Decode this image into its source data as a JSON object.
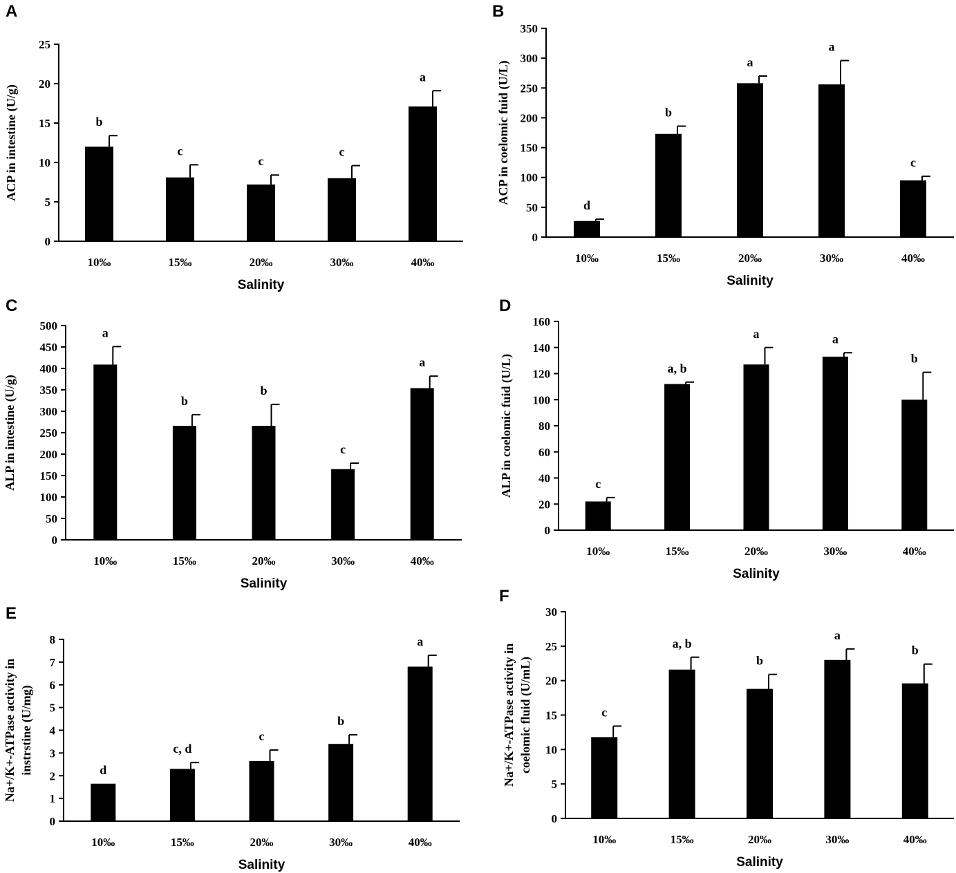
{
  "chart_data": [
    {
      "panel": "A",
      "type": "bar",
      "categories": [
        "10‰",
        "15‰",
        "20‰",
        "30‰",
        "40‰"
      ],
      "values": [
        12,
        8.1,
        7.2,
        8,
        17.1
      ],
      "errors": [
        1.4,
        1.6,
        1.2,
        1.6,
        2
      ],
      "significance": [
        "b",
        "c",
        "c",
        "c",
        "a"
      ],
      "xlabel": "Salinity",
      "ylabel": "ACP in intestine (U/g)",
      "ylabel_lines": [
        "ACP in intestine (U/g)"
      ],
      "ylim": [
        0,
        25
      ],
      "yticks": [
        0,
        5,
        10,
        15,
        20,
        25
      ]
    },
    {
      "panel": "B",
      "type": "bar",
      "categories": [
        "10‰",
        "15‰",
        "20‰",
        "30‰",
        "40‰"
      ],
      "values": [
        27,
        173,
        258,
        256,
        95
      ],
      "errors": [
        3,
        13,
        12,
        40,
        7
      ],
      "significance": [
        "d",
        "b",
        "a",
        "a",
        "c"
      ],
      "xlabel": "Salinity",
      "ylabel": "ACP in coelomic fuid (U/L)",
      "ylabel_lines": [
        "ACP in coelomic fuid (U/L)"
      ],
      "ylim": [
        0,
        350
      ],
      "yticks": [
        0,
        50,
        100,
        150,
        200,
        250,
        300,
        350
      ]
    },
    {
      "panel": "C",
      "type": "bar",
      "categories": [
        "10‰",
        "15‰",
        "20‰",
        "30‰",
        "40‰"
      ],
      "values": [
        409,
        266,
        266,
        165,
        354
      ],
      "errors": [
        42,
        26,
        50,
        14,
        28
      ],
      "significance": [
        "a",
        "b",
        "b",
        "c",
        "a"
      ],
      "xlabel": "Salinity",
      "ylabel": "ALP in intestine (U/g)",
      "ylabel_lines": [
        "ALP in intestine (U/g)"
      ],
      "ylim": [
        0,
        500
      ],
      "yticks": [
        0,
        50,
        100,
        150,
        200,
        250,
        300,
        350,
        400,
        450,
        500
      ]
    },
    {
      "panel": "D",
      "type": "bar",
      "categories": [
        "10‰",
        "15‰",
        "20‰",
        "30‰",
        "40‰"
      ],
      "values": [
        22,
        112,
        127,
        133,
        100
      ],
      "errors": [
        3,
        1.5,
        13,
        3,
        21
      ],
      "significance": [
        "c",
        "a, b",
        "a",
        "a",
        "b"
      ],
      "xlabel": "Salinity",
      "ylabel": "ALP in coelomic fuid (U/L)",
      "ylabel_lines": [
        "ALP in coelomic fuid (U/L)"
      ],
      "ylim": [
        0,
        160
      ],
      "yticks": [
        0,
        20,
        40,
        60,
        80,
        100,
        120,
        140,
        160
      ]
    },
    {
      "panel": "E",
      "type": "bar",
      "categories": [
        "10‰",
        "15‰",
        "20‰",
        "30‰",
        "40‰"
      ],
      "values": [
        1.65,
        2.3,
        2.65,
        3.4,
        6.8
      ],
      "errors": [
        0,
        0.28,
        0.48,
        0.4,
        0.5
      ],
      "significance": [
        "d",
        "c, d",
        "c",
        "b",
        "a"
      ],
      "xlabel": "Salinity",
      "ylabel": "Na+/K+-ATPase activity in instrstine (U/mg)",
      "ylabel_lines": [
        "Na+/K+-ATPase activity in",
        "instrstine (U/mg)"
      ],
      "ylim": [
        0,
        8
      ],
      "yticks": [
        0,
        1,
        2,
        3,
        4,
        5,
        6,
        7,
        8
      ]
    },
    {
      "panel": "F",
      "type": "bar",
      "categories": [
        "10‰",
        "15‰",
        "20‰",
        "30‰",
        "40‰"
      ],
      "values": [
        11.8,
        21.6,
        18.8,
        23,
        19.6
      ],
      "errors": [
        1.6,
        1.8,
        2.1,
        1.6,
        2.8
      ],
      "significance": [
        "c",
        "a, b",
        "b",
        "a",
        "b"
      ],
      "xlabel": "Salinity",
      "ylabel": "Na+/K+-ATPase activity in coelomic fluid (U/mL)",
      "ylabel_lines": [
        "Na+/K+-ATPase activity in",
        "coelomic fluid (U/mL)"
      ],
      "ylim": [
        0,
        30
      ],
      "yticks": [
        0,
        5,
        10,
        15,
        20,
        25,
        30
      ]
    }
  ]
}
